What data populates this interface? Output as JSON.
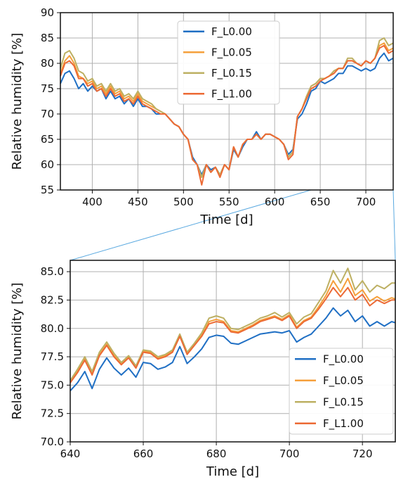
{
  "colors": {
    "F_L0.00": "#1f6fc4",
    "F_L0.05": "#f5a03c",
    "F_L0.15": "#bdb063",
    "F_L1.00": "#ec6a35",
    "grid": "#b0b0b0",
    "zoom_line": "#5aa9e0"
  },
  "chart_data": [
    {
      "type": "line",
      "xlabel": "Time [d]",
      "ylabel": "Relative humidity [%]",
      "xlim": [
        365,
        730
      ],
      "ylim": [
        55,
        90
      ],
      "xticks": [
        "400",
        "450",
        "500",
        "550",
        "600",
        "650",
        "700"
      ],
      "yticks": [
        "55",
        "60",
        "65",
        "70",
        "75",
        "80",
        "85",
        "90"
      ],
      "grid": true,
      "legend_position": "top-center",
      "legend": [
        "F_L0.00",
        "F_L0.05",
        "F_L0.15",
        "F_L1.00"
      ],
      "x": [
        365,
        370,
        375,
        380,
        385,
        390,
        395,
        400,
        405,
        410,
        415,
        420,
        425,
        430,
        435,
        440,
        445,
        450,
        455,
        460,
        465,
        470,
        475,
        480,
        485,
        490,
        495,
        500,
        505,
        510,
        515,
        520,
        525,
        530,
        535,
        540,
        545,
        550,
        555,
        560,
        565,
        570,
        575,
        580,
        585,
        590,
        595,
        600,
        605,
        610,
        615,
        620,
        625,
        630,
        635,
        640,
        645,
        650,
        655,
        660,
        665,
        670,
        675,
        680,
        685,
        690,
        695,
        700,
        705,
        710,
        715,
        720,
        725,
        730
      ],
      "series": [
        {
          "name": "F_L0.00",
          "values": [
            76,
            78,
            78.5,
            77,
            75,
            76,
            74.5,
            75.5,
            74.5,
            75,
            73,
            74.5,
            73,
            73.5,
            72,
            73,
            71.5,
            73,
            71.5,
            71.5,
            71,
            70,
            70,
            70,
            69,
            68,
            67.5,
            66,
            65,
            61.5,
            60,
            58,
            60,
            59,
            59.5,
            58,
            60,
            59,
            63,
            61.5,
            63.5,
            65,
            65,
            66.5,
            65,
            66,
            66,
            65.5,
            65,
            64,
            62,
            63,
            69,
            70,
            72,
            74.5,
            75,
            76.5,
            76,
            76.5,
            77,
            78,
            78,
            79.5,
            79.5,
            79,
            78.5,
            79,
            78.5,
            79,
            81,
            82,
            80.5,
            81
          ]
        },
        {
          "name": "F_L0.05",
          "values": [
            78,
            80.5,
            81.5,
            80,
            77.5,
            77,
            76,
            76.5,
            75,
            75.5,
            74,
            75.5,
            74,
            74.5,
            73,
            73.5,
            72.5,
            74,
            72.5,
            72,
            71.5,
            71,
            70.5,
            70,
            69,
            68,
            67.5,
            66,
            65,
            61,
            60,
            57.5,
            60,
            58.5,
            59.5,
            58,
            60,
            59,
            63.5,
            61.5,
            64,
            65,
            65,
            66,
            65,
            66,
            66,
            65.5,
            65,
            64,
            61.5,
            62.5,
            69.5,
            71,
            73.5,
            75.5,
            76,
            77,
            77,
            77.5,
            78.5,
            79,
            79,
            80.5,
            80.5,
            80,
            79.5,
            80.5,
            80,
            81,
            83.5,
            84,
            82.5,
            83
          ]
        },
        {
          "name": "F_L0.15",
          "values": [
            79,
            82,
            82.5,
            81,
            78.5,
            78,
            76.5,
            77,
            75.5,
            76,
            74.5,
            76,
            74.5,
            75,
            73.5,
            74,
            73,
            74.5,
            73,
            72.5,
            72,
            71,
            70.5,
            70,
            69,
            68,
            67.5,
            66,
            65,
            61,
            60,
            57.5,
            60,
            58.5,
            59.5,
            58,
            60,
            59,
            63.5,
            61.5,
            64,
            65,
            65,
            66,
            65,
            66,
            66,
            65.5,
            65,
            64,
            61.5,
            62.5,
            69.5,
            71,
            73.5,
            75.5,
            76,
            77,
            77,
            77.5,
            78.5,
            79,
            79,
            81,
            81,
            80,
            79.5,
            80.5,
            80,
            81,
            84.5,
            85,
            83.5,
            84
          ]
        },
        {
          "name": "F_L1.00",
          "values": [
            77.5,
            80,
            80.5,
            79.5,
            77,
            77,
            75.5,
            76,
            74.5,
            75,
            73.5,
            75,
            73.5,
            74,
            72.5,
            73,
            72,
            73.5,
            72,
            71.5,
            71,
            70.5,
            70,
            70,
            69,
            68,
            67.5,
            66,
            65,
            61,
            60,
            56,
            60,
            58.5,
            59.5,
            57.5,
            60,
            59,
            63.5,
            61.5,
            64,
            65,
            65,
            66,
            65,
            66,
            66,
            65.5,
            65,
            64,
            61,
            62,
            69.5,
            71,
            73,
            75,
            75.5,
            76.5,
            77,
            77.5,
            78,
            79,
            79,
            80.5,
            80.5,
            80,
            79.5,
            80.5,
            80,
            81,
            83,
            83.5,
            82,
            82.5
          ]
        }
      ]
    },
    {
      "type": "line",
      "xlabel": "Time [d]",
      "ylabel": "Relative humidity [%]",
      "xlim": [
        640,
        729
      ],
      "ylim": [
        70,
        86
      ],
      "xticks": [
        "640",
        "660",
        "680",
        "700",
        "720"
      ],
      "yticks": [
        "70.0",
        "72.5",
        "75.0",
        "77.5",
        "80.0",
        "82.5",
        "85.0"
      ],
      "grid": true,
      "legend_position": "lower-right",
      "legend": [
        "F_L0.00",
        "F_L0.05",
        "F_L0.15",
        "F_L1.00"
      ],
      "x": [
        640,
        642,
        644,
        646,
        648,
        650,
        652,
        654,
        656,
        658,
        660,
        662,
        664,
        666,
        668,
        670,
        672,
        674,
        676,
        678,
        680,
        682,
        684,
        686,
        688,
        690,
        692,
        694,
        696,
        698,
        700,
        702,
        704,
        706,
        708,
        710,
        712,
        714,
        716,
        718,
        720,
        722,
        724,
        726,
        728,
        729
      ],
      "series": [
        {
          "name": "F_L0.00",
          "values": [
            74.5,
            75.2,
            76.2,
            74.7,
            76.4,
            77.4,
            76.5,
            75.9,
            76.5,
            75.7,
            77,
            76.9,
            76.4,
            76.6,
            77,
            78.4,
            76.9,
            77.5,
            78.2,
            79.2,
            79.4,
            79.3,
            78.7,
            78.6,
            78.9,
            79.2,
            79.5,
            79.6,
            79.7,
            79.6,
            79.8,
            78.8,
            79.2,
            79.5,
            80.2,
            80.9,
            81.8,
            81.1,
            81.6,
            80.6,
            81.1,
            80.2,
            80.6,
            80.2,
            80.6,
            80.5
          ]
        },
        {
          "name": "F_L0.05",
          "values": [
            75.3,
            76.2,
            77.3,
            76,
            77.7,
            78.6,
            77.6,
            76.9,
            77.5,
            76.6,
            78,
            77.9,
            77.4,
            77.6,
            78,
            79.4,
            77.8,
            78.6,
            79.4,
            80.6,
            80.8,
            80.6,
            79.8,
            79.7,
            80,
            80.3,
            80.7,
            80.9,
            81.1,
            80.8,
            81.2,
            80.1,
            80.7,
            81,
            81.9,
            82.9,
            84.2,
            83.2,
            84.4,
            82.9,
            83.4,
            82.4,
            82.8,
            82.4,
            82.7,
            82.6
          ]
        },
        {
          "name": "F_L0.15",
          "values": [
            75.4,
            76.4,
            77.5,
            76.2,
            77.9,
            78.8,
            77.8,
            77,
            77.6,
            76.7,
            78.1,
            78,
            77.5,
            77.7,
            78.1,
            79.5,
            77.9,
            78.7,
            79.6,
            80.9,
            81.1,
            80.9,
            80,
            79.9,
            80.2,
            80.5,
            80.9,
            81.1,
            81.4,
            81,
            81.4,
            80.4,
            81,
            81.3,
            82.3,
            83.3,
            85.1,
            84,
            85.3,
            83.4,
            84.2,
            83.2,
            83.8,
            83.5,
            84,
            84
          ]
        },
        {
          "name": "F_L1.00",
          "values": [
            75.2,
            76.1,
            77.2,
            75.9,
            77.6,
            78.5,
            77.5,
            76.8,
            77.4,
            76.5,
            77.9,
            77.8,
            77.3,
            77.5,
            77.9,
            79.3,
            77.7,
            78.5,
            79.3,
            80.4,
            80.6,
            80.5,
            79.7,
            79.6,
            79.9,
            80.2,
            80.6,
            80.8,
            81,
            80.7,
            81.1,
            80,
            80.6,
            80.9,
            81.7,
            82.6,
            83.6,
            82.8,
            83.6,
            82.5,
            83,
            82,
            82.5,
            82.2,
            82.5,
            82.5
          ]
        }
      ]
    }
  ]
}
